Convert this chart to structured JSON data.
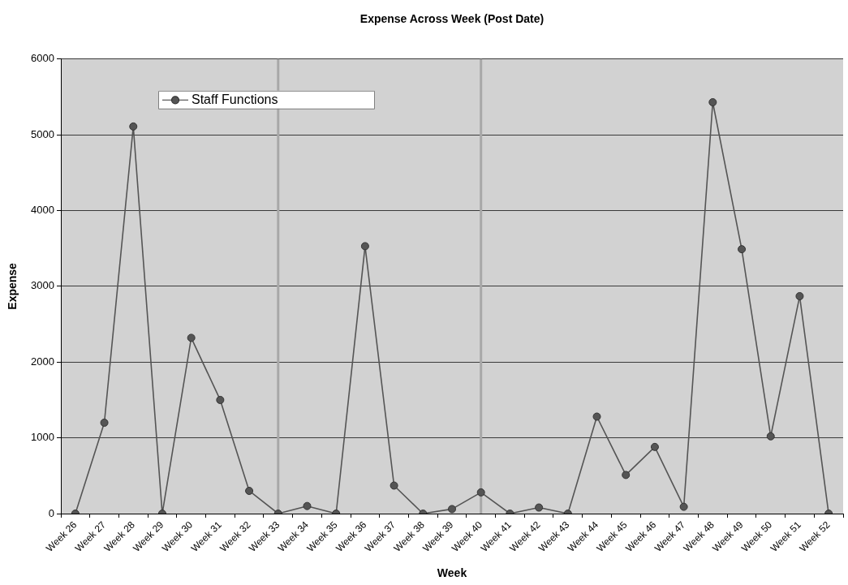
{
  "chart_data": {
    "type": "line",
    "title": "Expense Across Week (Post Date)",
    "xlabel": "Week",
    "ylabel": "Expense",
    "categories": [
      "Week 26",
      "Week 27",
      "Week 28",
      "Week 29",
      "Week 30",
      "Week 31",
      "Week 32",
      "Week 33",
      "Week 34",
      "Week 35",
      "Week 36",
      "Week 37",
      "Week 38",
      "Week 39",
      "Week 40",
      "Week 41",
      "Week 42",
      "Week 43",
      "Week 44",
      "Week 45",
      "Week 46",
      "Week 47",
      "Week 48",
      "Week 49",
      "Week 50",
      "Week 51",
      "Week 52"
    ],
    "series": [
      {
        "name": "Staff Functions",
        "color": "#555555",
        "values": [
          0,
          1200,
          5110,
          0,
          2320,
          1500,
          300,
          0,
          100,
          0,
          3530,
          370,
          0,
          60,
          280,
          0,
          80,
          0,
          1280,
          510,
          880,
          90,
          5430,
          3490,
          1020,
          2870,
          0
        ]
      }
    ],
    "ylim": [
      0,
      6000
    ],
    "yticks": [
      0,
      1000,
      2000,
      3000,
      4000,
      5000,
      6000
    ],
    "grid": "y",
    "legend": "top left",
    "marker": "circle",
    "line_style": "solid",
    "ref_lines": [
      {
        "axis": "x",
        "value": "Week 33",
        "color": "#a8a8a8"
      },
      {
        "axis": "x",
        "value": "Week 40",
        "color": "#a8a8a8"
      }
    ]
  }
}
